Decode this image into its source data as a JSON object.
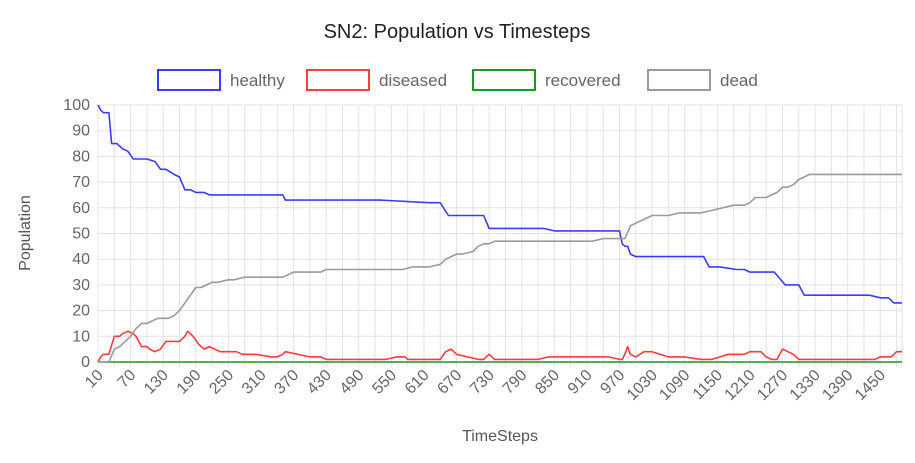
{
  "chart_data": {
    "type": "line",
    "title": "SN2: Population vs Timesteps",
    "xlabel": "TimeSteps",
    "ylabel": "Population",
    "ylim": [
      0,
      100
    ],
    "yticks": [
      0,
      10,
      20,
      30,
      40,
      50,
      60,
      70,
      80,
      90,
      100
    ],
    "xlim": [
      10,
      1490
    ],
    "xticks": [
      10,
      70,
      130,
      190,
      250,
      310,
      370,
      430,
      490,
      550,
      610,
      670,
      730,
      790,
      850,
      910,
      970,
      1030,
      1090,
      1150,
      1210,
      1270,
      1330,
      1390,
      1450
    ],
    "grid": true,
    "legend_position": "top",
    "series": [
      {
        "name": "healthy",
        "color": "#3b3bff",
        "x": [
          10,
          15,
          20,
          30,
          35,
          45,
          55,
          65,
          75,
          85,
          100,
          115,
          125,
          135,
          150,
          160,
          170,
          180,
          190,
          205,
          215,
          280,
          290,
          350,
          355,
          520,
          530,
          620,
          640,
          655,
          700,
          720,
          730,
          790,
          820,
          830,
          850,
          970,
          975,
          980,
          985,
          990,
          1000,
          1010,
          1100,
          1125,
          1135,
          1155,
          1185,
          1200,
          1210,
          1240,
          1255,
          1275,
          1290,
          1300,
          1310,
          1420,
          1430,
          1450,
          1465,
          1475,
          1490
        ],
        "values": [
          100,
          98,
          97,
          97,
          85,
          85,
          83,
          82,
          79,
          79,
          79,
          78,
          75,
          75,
          73,
          72,
          67,
          67,
          66,
          66,
          65,
          65,
          65,
          65,
          63,
          63,
          63,
          62,
          62,
          57,
          57,
          57,
          52,
          52,
          52,
          52,
          51,
          51,
          46,
          45,
          45,
          42,
          41,
          41,
          41,
          41,
          37,
          37,
          36,
          36,
          35,
          35,
          35,
          30,
          30,
          30,
          26,
          26,
          26,
          25,
          25,
          23,
          23
        ]
      },
      {
        "name": "diseased",
        "color": "#ff3b3b",
        "x": [
          10,
          15,
          20,
          30,
          40,
          50,
          55,
          65,
          75,
          80,
          85,
          90,
          100,
          105,
          115,
          125,
          135,
          150,
          160,
          170,
          175,
          185,
          195,
          205,
          215,
          235,
          265,
          275,
          300,
          330,
          340,
          350,
          355,
          400,
          415,
          420,
          430,
          530,
          540,
          560,
          575,
          580,
          610,
          640,
          650,
          660,
          670,
          690,
          710,
          720,
          730,
          740,
          820,
          840,
          900,
          950,
          970,
          975,
          980,
          985,
          990,
          1000,
          1015,
          1030,
          1060,
          1090,
          1120,
          1130,
          1140,
          1170,
          1185,
          1200,
          1210,
          1230,
          1240,
          1250,
          1260,
          1270,
          1280,
          1290,
          1300,
          1320,
          1360,
          1400,
          1420,
          1440,
          1450,
          1460,
          1470,
          1480,
          1490
        ],
        "values": [
          0,
          2,
          3,
          3,
          10,
          10,
          11,
          12,
          11,
          10,
          8,
          6,
          6,
          5,
          4,
          5,
          8,
          8,
          8,
          10,
          12,
          10,
          7,
          5,
          6,
          4,
          4,
          3,
          3,
          2,
          2,
          3,
          4,
          2,
          2,
          2,
          1,
          1,
          1,
          2,
          2,
          1,
          1,
          1,
          4,
          5,
          3,
          2,
          1,
          1,
          3,
          1,
          1,
          2,
          2,
          2,
          1,
          1,
          3,
          6,
          3,
          2,
          4,
          4,
          2,
          2,
          1,
          1,
          1,
          3,
          3,
          3,
          4,
          4,
          2,
          1,
          1,
          5,
          4,
          3,
          1,
          1,
          1,
          1,
          1,
          1,
          2,
          2,
          2,
          4,
          4
        ]
      },
      {
        "name": "recovered",
        "color": "#1a9a1a",
        "x": [
          10,
          1490
        ],
        "values": [
          0,
          0
        ]
      },
      {
        "name": "dead",
        "color": "#9a9a9a",
        "x": [
          10,
          30,
          40,
          50,
          60,
          70,
          80,
          90,
          100,
          110,
          120,
          130,
          140,
          150,
          160,
          170,
          180,
          190,
          200,
          210,
          220,
          230,
          250,
          260,
          280,
          290,
          330,
          350,
          370,
          380,
          420,
          430,
          460,
          500,
          540,
          550,
          570,
          590,
          610,
          620,
          640,
          650,
          660,
          670,
          680,
          700,
          710,
          720,
          730,
          740,
          760,
          800,
          860,
          900,
          920,
          940,
          960,
          980,
          990,
          1000,
          1010,
          1020,
          1030,
          1060,
          1080,
          1100,
          1120,
          1140,
          1160,
          1180,
          1200,
          1210,
          1220,
          1240,
          1260,
          1270,
          1280,
          1290,
          1300,
          1320,
          1340,
          1380,
          1420,
          1460,
          1490
        ],
        "values": [
          0,
          0,
          5,
          6,
          8,
          10,
          13,
          15,
          15,
          16,
          17,
          17,
          17,
          18,
          20,
          23,
          26,
          29,
          29,
          30,
          31,
          31,
          32,
          32,
          33,
          33,
          33,
          33,
          35,
          35,
          35,
          36,
          36,
          36,
          36,
          36,
          36,
          37,
          37,
          37,
          38,
          40,
          41,
          42,
          42,
          43,
          45,
          46,
          46,
          47,
          47,
          47,
          47,
          47,
          47,
          48,
          48,
          48,
          53,
          54,
          55,
          56,
          57,
          57,
          58,
          58,
          58,
          59,
          60,
          61,
          61,
          62,
          64,
          64,
          66,
          68,
          68,
          69,
          71,
          73,
          73,
          73,
          73,
          73,
          73
        ]
      }
    ]
  }
}
